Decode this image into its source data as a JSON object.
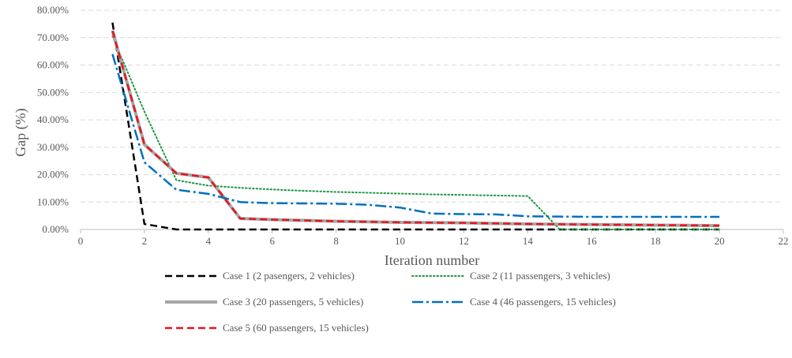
{
  "chart_data": {
    "type": "line",
    "title": "",
    "xlabel": "Iteration number",
    "ylabel": "Gap (%)",
    "xlim": [
      0,
      22
    ],
    "ylim": [
      0,
      0.8
    ],
    "x_ticks": [
      0,
      2,
      4,
      6,
      8,
      10,
      12,
      14,
      16,
      18,
      20,
      22
    ],
    "y_ticks": [
      0,
      0.1,
      0.2,
      0.3,
      0.4,
      0.5,
      0.6,
      0.7,
      0.8
    ],
    "x_tick_labels": [
      "0",
      "2",
      "4",
      "6",
      "8",
      "10",
      "12",
      "14",
      "16",
      "18",
      "20",
      "22"
    ],
    "y_tick_labels": [
      "0.00%",
      "10.00%",
      "20.00%",
      "30.00%",
      "40.00%",
      "50.00%",
      "60.00%",
      "70.00%",
      "80.00%"
    ],
    "grid": {
      "horizontal": true,
      "vertical": false
    },
    "legend_position": "bottom",
    "x": [
      1,
      2,
      3,
      4,
      5,
      6,
      7,
      8,
      9,
      10,
      11,
      12,
      13,
      14,
      15,
      16,
      17,
      18,
      19,
      20
    ],
    "series": [
      {
        "name": "Case 1 (2 pasengers, 2 vehicles)",
        "color": "#000000",
        "dash": "dashed",
        "values": [
          0.755,
          0.02,
          0.0,
          0.0,
          0.0,
          0.0,
          0.0,
          0.0,
          0.0,
          0.0,
          0.0,
          0.0,
          0.0,
          0.0,
          0.0,
          0.0,
          0.0,
          0.0,
          0.0,
          0.0
        ]
      },
      {
        "name": "Case 2 (11 passengers, 3 vehicles)",
        "color": "#1a9641",
        "dash": "dotted",
        "values": [
          0.705,
          0.43,
          0.18,
          0.16,
          0.152,
          0.146,
          0.141,
          0.137,
          0.134,
          0.131,
          0.128,
          0.126,
          0.124,
          0.122,
          0.0,
          0.0,
          0.0,
          0.0,
          0.0,
          0.0
        ]
      },
      {
        "name": "Case 3 (20 passengers, 5 vehicles)",
        "color": "#a6a6a6",
        "dash": "solid",
        "values": [
          0.725,
          0.31,
          0.205,
          0.19,
          0.04,
          0.036,
          0.033,
          0.03,
          0.028,
          0.026,
          0.025,
          0.024,
          0.022,
          0.02,
          0.019,
          0.018,
          0.017,
          0.016,
          0.015,
          0.014
        ]
      },
      {
        "name": "Case 4 (46 passengers, 15 vehicles)",
        "color": "#0070c0",
        "dash": "dashdot",
        "values": [
          0.64,
          0.245,
          0.145,
          0.13,
          0.1,
          0.096,
          0.095,
          0.094,
          0.09,
          0.08,
          0.058,
          0.056,
          0.055,
          0.048,
          0.047,
          0.046,
          0.046,
          0.046,
          0.046,
          0.046
        ]
      },
      {
        "name": "Case 5 (60 passengers, 15 vehicles)",
        "color": "#e8141c",
        "dash": "dashed",
        "values": [
          0.725,
          0.31,
          0.205,
          0.19,
          0.04,
          0.036,
          0.033,
          0.03,
          0.028,
          0.026,
          0.025,
          0.024,
          0.022,
          0.02,
          0.019,
          0.018,
          0.017,
          0.016,
          0.015,
          0.014
        ]
      }
    ]
  }
}
